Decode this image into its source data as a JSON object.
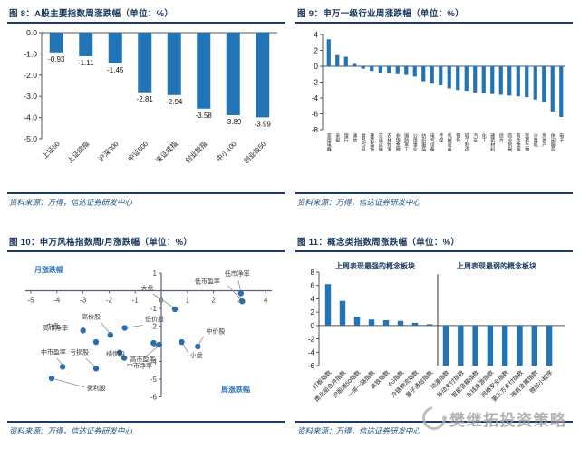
{
  "watermark": {
    "text": "樊继拓投资策略"
  },
  "figures": [
    {
      "id": "fig8",
      "title": "图 8：A股主要指数周涨跌幅（单位：%）",
      "source": "资料来源：万得，信达证券研发中心",
      "chart_data": {
        "type": "bar",
        "categories": [
          "上证50",
          "上证综指",
          "沪深300",
          "中证500",
          "深证成指",
          "创业板指",
          "中小100",
          "创业板50"
        ],
        "values": [
          -0.93,
          -1.11,
          -1.45,
          -2.81,
          -2.94,
          -3.58,
          -3.89,
          -3.99
        ],
        "value_labels": [
          "-0.93",
          "-1.11",
          "-1.45",
          "-2.81",
          "-2.94",
          "-3.58",
          "-3.89",
          "-3.99"
        ],
        "ylim": [
          -5,
          0
        ],
        "yticks": [
          0,
          -1,
          -2,
          -3,
          -4,
          -5
        ],
        "ytick_labels": [
          "0.0",
          "-1.0",
          "-2.0",
          "-3.0",
          "-4.0",
          "-5.0"
        ],
        "bar_color": "#2274B5"
      }
    },
    {
      "id": "fig9",
      "title": "图 9：申万一级行业周涨跌幅（单位：%）",
      "source": "资料来源：万得，信达证券研发中心",
      "chart_data": {
        "type": "bar",
        "categories": [
          "家用电器",
          "采掘",
          "银行",
          "通信",
          "食品饮料",
          "建筑装饰",
          "交通运输",
          "农林牧渔",
          "非银金融",
          "国防军工",
          "公用事业",
          "纺织服装",
          "电气设备",
          "传媒",
          "机械设备",
          "钢铁",
          "轻工制造",
          "汽车",
          "化工",
          "建筑材料",
          "综合",
          "商业贸易",
          "有色金属",
          "医药生物",
          "计算机",
          "房地产",
          "休闲服务",
          "电子"
        ],
        "values": [
          3.4,
          1.4,
          1.2,
          0.3,
          -0.3,
          -0.6,
          -0.8,
          -0.9,
          -1.0,
          -1.1,
          -1.3,
          -1.9,
          -2.2,
          -2.4,
          -2.8,
          -3.0,
          -3.1,
          -3.3,
          -3.4,
          -3.5,
          -3.6,
          -3.7,
          -3.8,
          -3.9,
          -4.2,
          -4.5,
          -5.7,
          -6.4
        ],
        "ylim": [
          -8,
          4
        ],
        "yticks": [
          4,
          2,
          0,
          -2,
          -4,
          -6,
          -8
        ],
        "ytick_labels": [
          "4",
          "2",
          "0",
          "-2",
          "-4",
          "-6",
          "-8"
        ],
        "bar_color": "#2274B5"
      }
    },
    {
      "id": "fig10",
      "title": "图 10：申万风格指数周/月涨跌幅（单位：%）",
      "source": "资料来源：万得，信达证券研发中心",
      "chart_data": {
        "type": "scatter",
        "axis_label_top_left": "月涨跌幅",
        "axis_label_bottom_right": "周涨跌幅",
        "xlim": [
          -5,
          4
        ],
        "ylim": [
          -6,
          1
        ],
        "xticks": [
          -5,
          -4,
          -3,
          -2,
          -1,
          0,
          1,
          2,
          3,
          4
        ],
        "yticks": [
          1,
          -1,
          -2,
          -3,
          -4,
          -5,
          -6
        ],
        "point_color": "#2B6CAB",
        "points": [
          {
            "name": "低市净率",
            "x": 3.05,
            "y": -0.15,
            "label": {
              "x": 2.42,
              "y": 0.85
            }
          },
          {
            "name": "低市盈率",
            "x": 3.1,
            "y": -0.6,
            "label": {
              "x": 1.28,
              "y": 0.42
            }
          },
          {
            "name": "大盘",
            "x": 0.52,
            "y": -1.05,
            "label": {
              "x": -0.78,
              "y": 0.02
            }
          },
          {
            "name": "低价股",
            "x": -1.4,
            "y": -2.1,
            "label": {
              "x": -0.62,
              "y": -1.72
            }
          },
          {
            "name": "中盘",
            "x": -2.5,
            "y": -2.9,
            "label": {
              "x": -4.4,
              "y": -2.12
            }
          },
          {
            "name": "高市净率",
            "x": -3.0,
            "y": -2.25,
            "label": {
              "x": -4.55,
              "y": -2.22
            }
          },
          {
            "name": "高价股",
            "x": -1.95,
            "y": -2.5,
            "label": {
              "x": -3.05,
              "y": -1.6
            }
          },
          {
            "name": "高市盈率",
            "x": -0.08,
            "y": -3.05,
            "label": {
              "x": -1.2,
              "y": -4.0
            }
          },
          {
            "name": "",
            "x": -0.3,
            "y": -2.95,
            "label": null
          },
          {
            "name": "小盘",
            "x": 0.78,
            "y": -2.9,
            "label": {
              "x": 1.1,
              "y": -3.78
            }
          },
          {
            "name": "中价股",
            "x": 1.4,
            "y": -3.15,
            "label": {
              "x": 1.72,
              "y": -2.42
            }
          },
          {
            "name": "绩优股",
            "x": -1.6,
            "y": -3.5,
            "label": {
              "x": -2.12,
              "y": -3.68
            }
          },
          {
            "name": "中市净率",
            "x": -1.42,
            "y": -3.8,
            "label": {
              "x": -1.32,
              "y": -4.35
            }
          },
          {
            "name": "中市盈率",
            "x": -3.78,
            "y": -4.3,
            "label": {
              "x": -4.62,
              "y": -3.58
            }
          },
          {
            "name": "亏损股",
            "x": -2.5,
            "y": -4.4,
            "label": {
              "x": -3.5,
              "y": -3.58
            }
          },
          {
            "name": "微利股",
            "x": -4.2,
            "y": -4.95,
            "label": {
              "x": -2.85,
              "y": -5.62
            }
          }
        ],
        "leaders": [
          {
            "x1": 2.95,
            "y1": 0.58,
            "x2": 3.03,
            "y2": 0.05
          },
          {
            "x1": 2.55,
            "y1": 0.3,
            "x2": 3.0,
            "y2": -0.42
          },
          {
            "x1": -0.32,
            "y1": -0.18,
            "x2": 0.44,
            "y2": -0.92
          },
          {
            "x1": -0.72,
            "y1": -1.95,
            "x2": -1.28,
            "y2": -2.08
          },
          {
            "x1": -2.32,
            "y1": -1.78,
            "x2": -2.0,
            "y2": -2.36
          },
          {
            "x1": -0.68,
            "y1": -3.82,
            "x2": -0.15,
            "y2": -3.18
          },
          {
            "x1": 1.05,
            "y1": -3.55,
            "x2": 0.83,
            "y2": -3.02
          },
          {
            "x1": 1.62,
            "y1": -2.58,
            "x2": 1.45,
            "y2": -3.0
          },
          {
            "x1": -4.0,
            "y1": -3.82,
            "x2": -3.8,
            "y2": -4.18
          },
          {
            "x1": -2.9,
            "y1": -3.82,
            "x2": -2.55,
            "y2": -4.28
          },
          {
            "x1": -2.95,
            "y1": -5.45,
            "x2": -4.08,
            "y2": -5.0
          }
        ]
      }
    },
    {
      "id": "fig11",
      "title": "图 11：概念类指数周涨跌幅（单位：%）",
      "source": "资料来源：万得，信达证券研发中心",
      "chart_data": {
        "type": "bar",
        "group_titles": [
          "上周表现最强的概念板块",
          "上周表现最弱的概念板块"
        ],
        "categories": [
          "打板指数",
          "南北船合并指数",
          "沪股通50指数",
          "一带一路指数",
          "高铁指数",
          "4G指数",
          "冷链物流指数",
          "量子通信指数",
          "动漫指数",
          "移动支付指数",
          "智能音箱指数",
          "在线旅游指数",
          "网络安全指数",
          "第三方支付指数",
          "稀有金属指数",
          "微信小程序"
        ],
        "values": [
          6.2,
          3.7,
          1.3,
          0.9,
          0.8,
          0.7,
          0.4,
          0.2,
          -6,
          -6,
          -6,
          -6,
          -6,
          -6,
          -6,
          -6
        ],
        "divider_after_index": 7,
        "ylim": [
          -6,
          8
        ],
        "yticks": [
          8,
          6,
          4,
          2,
          0,
          -2,
          -4,
          -6
        ],
        "ytick_labels": [
          "8",
          "6",
          "4",
          "2",
          "0",
          "-2",
          "-4",
          "-6"
        ],
        "bar_color": "#2274B5"
      }
    }
  ]
}
